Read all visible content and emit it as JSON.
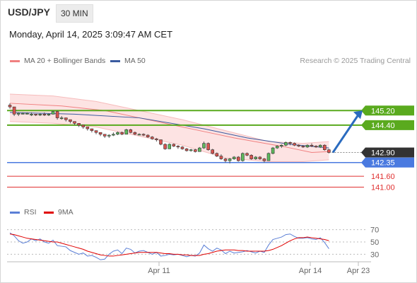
{
  "header": {
    "symbol": "USD/JPY",
    "timeframe": "30 MIN",
    "datetime": "Monday, April 14, 2025 3:09:47 AM CET"
  },
  "legend": {
    "items": [
      {
        "label": "MA 20 + Bollinger Bands",
        "color": "#f08080"
      },
      {
        "label": "MA 50",
        "color": "#3a5ba0"
      }
    ],
    "credit": "Research © 2025 Trading Central"
  },
  "rsi_legend": {
    "items": [
      {
        "label": "RSI",
        "color": "#5b7fd6"
      },
      {
        "label": "9MA",
        "color": "#e00000"
      }
    ]
  },
  "colors": {
    "bull": "#5cb85c",
    "bear": "#d9534f",
    "resistance": "#5aaa1e",
    "support": "#4a7ae0",
    "target": "#e03030",
    "arrow": "#2a6bbf",
    "current": "#333333"
  },
  "chart_data": [
    {
      "type": "candlestick",
      "x_ticks": [
        "Apr 11",
        "Apr 14",
        "Apr 23"
      ],
      "ylim": [
        140.4,
        146.8
      ],
      "candles": [
        [
          145.5,
          145.6,
          145.3,
          145.4
        ],
        [
          145.4,
          145.4,
          144.9,
          145.0
        ],
        [
          145.0,
          145.1,
          144.9,
          145.05
        ],
        [
          145.0,
          145.1,
          145.0,
          145.05
        ],
        [
          145.0,
          145.1,
          145.0,
          145.05
        ],
        [
          145.0,
          145.1,
          144.9,
          145.0
        ],
        [
          145.0,
          145.0,
          144.9,
          144.95
        ],
        [
          144.95,
          145.05,
          144.9,
          145.0
        ],
        [
          145.0,
          145.1,
          144.9,
          144.95
        ],
        [
          144.95,
          145.05,
          144.9,
          145.0
        ],
        [
          145.0,
          145.2,
          145.0,
          145.15
        ],
        [
          145.15,
          145.2,
          144.7,
          144.8
        ],
        [
          144.8,
          144.9,
          144.7,
          144.8
        ],
        [
          144.8,
          144.8,
          144.6,
          144.7
        ],
        [
          144.7,
          144.7,
          144.5,
          144.6
        ],
        [
          144.6,
          144.6,
          144.4,
          144.5
        ],
        [
          144.5,
          144.5,
          144.3,
          144.4
        ],
        [
          144.4,
          144.4,
          144.2,
          144.3
        ],
        [
          144.3,
          144.3,
          144.1,
          144.2
        ],
        [
          144.2,
          144.2,
          144.0,
          144.1
        ],
        [
          144.1,
          144.1,
          143.9,
          144.0
        ],
        [
          144.0,
          144.0,
          143.8,
          143.9
        ],
        [
          143.9,
          143.9,
          143.7,
          143.8
        ],
        [
          143.8,
          143.9,
          143.7,
          143.85
        ],
        [
          143.85,
          144.0,
          143.8,
          143.9
        ],
        [
          143.9,
          144.05,
          143.85,
          144.0
        ],
        [
          144.0,
          144.05,
          143.85,
          143.9
        ],
        [
          143.9,
          144.2,
          143.9,
          144.15
        ],
        [
          144.15,
          144.2,
          143.95,
          144.0
        ],
        [
          144.0,
          144.05,
          143.85,
          143.9
        ],
        [
          143.9,
          143.95,
          143.85,
          143.9
        ],
        [
          143.9,
          143.95,
          143.8,
          143.85
        ],
        [
          143.85,
          143.9,
          143.7,
          143.75
        ],
        [
          143.75,
          143.8,
          143.6,
          143.65
        ],
        [
          143.65,
          143.7,
          143.5,
          143.6
        ],
        [
          143.6,
          143.6,
          143.3,
          143.35
        ],
        [
          143.35,
          143.4,
          143.05,
          143.1
        ],
        [
          143.1,
          143.4,
          143.1,
          143.35
        ],
        [
          143.35,
          143.4,
          143.2,
          143.25
        ],
        [
          143.25,
          143.3,
          143.1,
          143.2
        ],
        [
          143.2,
          143.25,
          143.05,
          143.1
        ],
        [
          143.1,
          143.15,
          142.95,
          143.0
        ],
        [
          143.0,
          143.1,
          142.95,
          143.05
        ],
        [
          143.05,
          143.1,
          142.9,
          142.95
        ],
        [
          142.95,
          143.2,
          142.95,
          143.15
        ],
        [
          143.15,
          143.5,
          143.1,
          143.4
        ],
        [
          143.4,
          143.45,
          143.0,
          143.05
        ],
        [
          143.05,
          143.1,
          142.8,
          142.85
        ],
        [
          142.85,
          142.9,
          142.65,
          142.7
        ],
        [
          142.7,
          142.8,
          142.5,
          142.55
        ],
        [
          142.55,
          142.6,
          142.35,
          142.45
        ],
        [
          142.45,
          142.6,
          142.3,
          142.55
        ],
        [
          142.55,
          142.7,
          142.5,
          142.65
        ],
        [
          142.65,
          142.7,
          142.4,
          142.45
        ],
        [
          142.45,
          142.9,
          142.4,
          142.85
        ],
        [
          142.85,
          142.9,
          142.7,
          142.75
        ],
        [
          142.75,
          142.8,
          142.5,
          142.55
        ],
        [
          142.55,
          142.7,
          142.5,
          142.65
        ],
        [
          142.65,
          142.7,
          142.5,
          142.55
        ],
        [
          142.55,
          142.6,
          142.35,
          142.45
        ],
        [
          142.45,
          142.9,
          142.45,
          142.85
        ],
        [
          142.85,
          143.2,
          142.8,
          143.15
        ],
        [
          143.15,
          143.3,
          143.1,
          143.25
        ],
        [
          143.25,
          143.35,
          143.15,
          143.3
        ],
        [
          143.3,
          143.5,
          143.25,
          143.45
        ],
        [
          143.45,
          143.5,
          143.3,
          143.4
        ],
        [
          143.4,
          143.45,
          143.25,
          143.3
        ],
        [
          143.3,
          143.35,
          143.2,
          143.25
        ],
        [
          143.25,
          143.3,
          143.15,
          143.2
        ],
        [
          143.2,
          143.35,
          143.15,
          143.3
        ],
        [
          143.3,
          143.4,
          143.2,
          143.25
        ],
        [
          143.25,
          143.3,
          143.15,
          143.2
        ],
        [
          143.2,
          143.35,
          143.15,
          143.3
        ],
        [
          143.3,
          143.35,
          143.0,
          143.05
        ],
        [
          143.05,
          143.1,
          142.85,
          142.9
        ]
      ],
      "ma20": [
        [
          0,
          145.6
        ],
        [
          12,
          145.45
        ],
        [
          22,
          145.2
        ],
        [
          30,
          144.8
        ],
        [
          38,
          144.4
        ],
        [
          46,
          144.0
        ],
        [
          52,
          143.7
        ],
        [
          58,
          143.45
        ],
        [
          64,
          143.2
        ],
        [
          70,
          142.9
        ],
        [
          74,
          142.95
        ]
      ],
      "ma50": [
        [
          0,
          145.1
        ],
        [
          15,
          145.0
        ],
        [
          30,
          144.8
        ],
        [
          45,
          144.2
        ],
        [
          55,
          143.7
        ],
        [
          65,
          143.35
        ],
        [
          74,
          143.15
        ]
      ],
      "bb_upper": [
        [
          0,
          146.1
        ],
        [
          10,
          146.0
        ],
        [
          20,
          145.7
        ],
        [
          30,
          145.2
        ],
        [
          40,
          144.7
        ],
        [
          50,
          144.1
        ],
        [
          60,
          143.5
        ],
        [
          68,
          143.4
        ],
        [
          74,
          143.5
        ]
      ],
      "bb_lower": [
        [
          0,
          144.6
        ],
        [
          10,
          144.5
        ],
        [
          20,
          144.3
        ],
        [
          30,
          143.8
        ],
        [
          40,
          143.3
        ],
        [
          50,
          142.6
        ],
        [
          60,
          142.4
        ],
        [
          68,
          142.4
        ],
        [
          74,
          142.5
        ]
      ],
      "levels": [
        {
          "label": "145.20",
          "value": 145.2,
          "kind": "resistance"
        },
        {
          "label": "144.40",
          "value": 144.4,
          "kind": "resistance"
        },
        {
          "label": "142.90",
          "value": 142.9,
          "kind": "current"
        },
        {
          "label": "142.35",
          "value": 142.35,
          "kind": "support"
        },
        {
          "label": "141.60",
          "value": 141.6,
          "kind": "target"
        },
        {
          "label": "141.00",
          "value": 141.0,
          "kind": "target"
        }
      ]
    },
    {
      "type": "line",
      "ylim": [
        20,
        80
      ],
      "y_ticks": [
        70,
        50,
        30
      ],
      "levels": [
        70,
        50,
        30
      ],
      "series": [
        {
          "name": "RSI",
          "values": [
            65,
            60,
            52,
            48,
            50,
            55,
            52,
            55,
            50,
            48,
            53,
            44,
            43,
            42,
            36,
            33,
            30,
            32,
            27,
            28,
            25,
            21,
            22,
            30,
            35,
            37,
            31,
            40,
            38,
            32,
            35,
            36,
            33,
            30,
            33,
            27,
            28,
            30,
            29,
            30,
            28,
            26,
            28,
            27,
            32,
            45,
            39,
            35,
            40,
            37,
            31,
            35,
            32,
            33,
            34,
            36,
            34,
            32,
            35,
            33,
            45,
            54,
            56,
            58,
            62,
            63,
            59,
            56,
            56,
            57,
            55,
            54,
            57,
            49,
            39
          ]
        },
        {
          "name": "9MA",
          "values": [
            63,
            62,
            60,
            58,
            56,
            55,
            54,
            53,
            52,
            51,
            50,
            50,
            48,
            46,
            44,
            42,
            40,
            38,
            35,
            33,
            31,
            29,
            28,
            27,
            27,
            28,
            29,
            30,
            31,
            32,
            33,
            33,
            33,
            33,
            33,
            32,
            31,
            31,
            30,
            30,
            29,
            29,
            28,
            28,
            28,
            30,
            31,
            33,
            35,
            36,
            37,
            37,
            37,
            36,
            36,
            35,
            35,
            35,
            35,
            35,
            36,
            38,
            41,
            44,
            48,
            52,
            55,
            57,
            57,
            58,
            57,
            56,
            55,
            54,
            52
          ]
        }
      ]
    }
  ]
}
